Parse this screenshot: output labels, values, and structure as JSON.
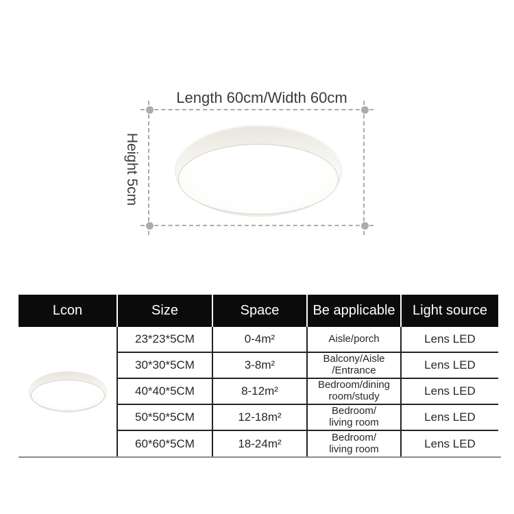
{
  "diagram": {
    "length_label": "Length 60cm/Width 60cm",
    "height_label": "Height 5cm"
  },
  "icons": {
    "diagram_lamp": "round-ceiling-lamp",
    "table_lamp": "round-ceiling-lamp-icon"
  },
  "colors": {
    "header_bg": "#0b0b0b",
    "header_text": "#ffffff",
    "table_border": "#222222",
    "dash_line": "#ababab",
    "bottom_rule": "#8c8c8c",
    "lamp_rim": "#e7e3da"
  },
  "table": {
    "headers": [
      "Lcon",
      "Size",
      "Space",
      "Be applicable",
      "Light source"
    ],
    "rows": [
      {
        "size": "23*23*5CM",
        "space": "0-4m²",
        "applicable": "Aisle/porch",
        "light": "Lens LED"
      },
      {
        "size": "30*30*5CM",
        "space": "3-8m²",
        "applicable": "Balcony/Aisle\n/Entrance",
        "light": "Lens LED"
      },
      {
        "size": "40*40*5CM",
        "space": "8-12m²",
        "applicable": "Bedroom/dining\nroom/study",
        "light": "Lens LED"
      },
      {
        "size": "50*50*5CM",
        "space": "12-18m²",
        "applicable": "Bedroom/\nliving room",
        "light": "Lens LED"
      },
      {
        "size": "60*60*5CM",
        "space": "18-24m²",
        "applicable": "Bedroom/\nliving room",
        "light": "Lens LED"
      }
    ]
  }
}
